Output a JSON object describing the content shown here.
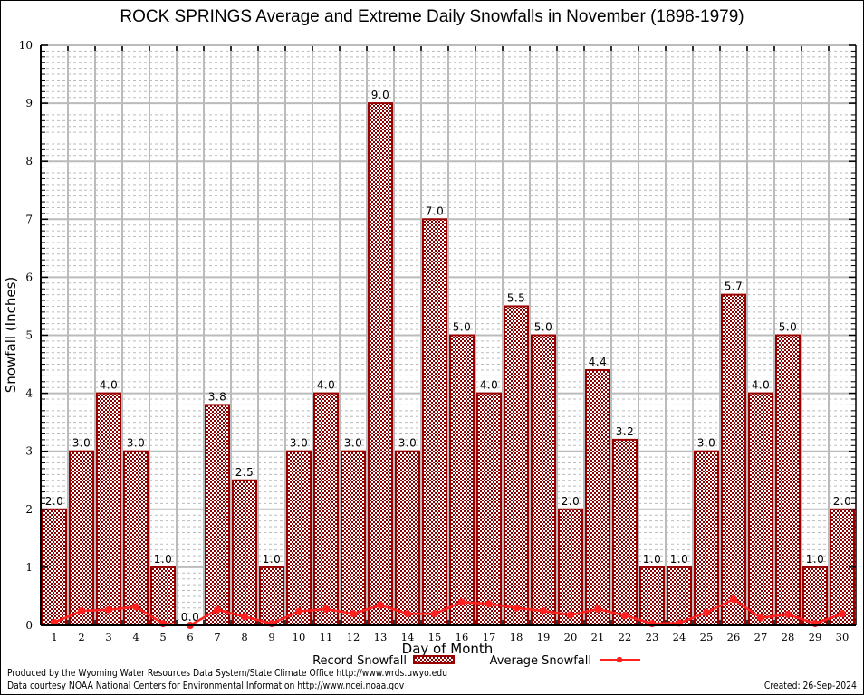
{
  "chart_data": {
    "type": "bar",
    "title": "ROCK SPRINGS Average and Extreme Daily Snowfalls in November (1898-1979)",
    "xlabel": "Day of Month",
    "ylabel": "Snowfall (Inches)",
    "ylim": [
      0,
      10
    ],
    "yticks": [
      "0",
      "1",
      "2",
      "3",
      "4",
      "5",
      "6",
      "7",
      "8",
      "9",
      "10"
    ],
    "grid": true,
    "categories": [
      "1",
      "2",
      "3",
      "4",
      "5",
      "6",
      "7",
      "8",
      "9",
      "10",
      "11",
      "12",
      "13",
      "14",
      "15",
      "16",
      "17",
      "18",
      "19",
      "20",
      "21",
      "22",
      "23",
      "24",
      "25",
      "26",
      "27",
      "28",
      "29",
      "30"
    ],
    "series": [
      {
        "name": "Record Snowfall",
        "type": "bar",
        "color": "#990000",
        "values": [
          2.0,
          3.0,
          4.0,
          3.0,
          1.0,
          0.0,
          3.8,
          2.5,
          1.0,
          3.0,
          4.0,
          3.0,
          9.0,
          3.0,
          7.0,
          5.0,
          4.0,
          5.5,
          5.0,
          2.0,
          4.4,
          3.2,
          1.0,
          1.0,
          3.0,
          5.7,
          4.0,
          5.0,
          1.0,
          2.0
        ],
        "labels": [
          "2.0",
          "3.0",
          "4.0",
          "3.0",
          "1.0",
          "0.0",
          "3.8",
          "2.5",
          "1.0",
          "3.0",
          "4.0",
          "3.0",
          "9.0",
          "3.0",
          "7.0",
          "5.0",
          "4.0",
          "5.5",
          "5.0",
          "2.0",
          "4.4",
          "3.2",
          "1.0",
          "1.0",
          "3.0",
          "5.7",
          "4.0",
          "5.0",
          "1.0",
          "2.0"
        ]
      },
      {
        "name": "Average Snowfall",
        "type": "line",
        "color": "#ff2020",
        "values": [
          0.05,
          0.25,
          0.27,
          0.32,
          0.03,
          0.0,
          0.27,
          0.15,
          0.03,
          0.24,
          0.28,
          0.2,
          0.35,
          0.2,
          0.2,
          0.4,
          0.37,
          0.3,
          0.25,
          0.18,
          0.28,
          0.17,
          0.03,
          0.04,
          0.22,
          0.45,
          0.13,
          0.19,
          0.03,
          0.2
        ]
      }
    ],
    "legend": "bottom-center"
  },
  "footer": {
    "line1": "Produced by the Wyoming Water Resources Data System/State Climate Office http://www.wrds.uwyo.edu",
    "line2": "Data courtesy NOAA National Centers for Environmental Information http://www.ncei.noaa.gov",
    "created": "Created: 26-Sep-2024"
  }
}
